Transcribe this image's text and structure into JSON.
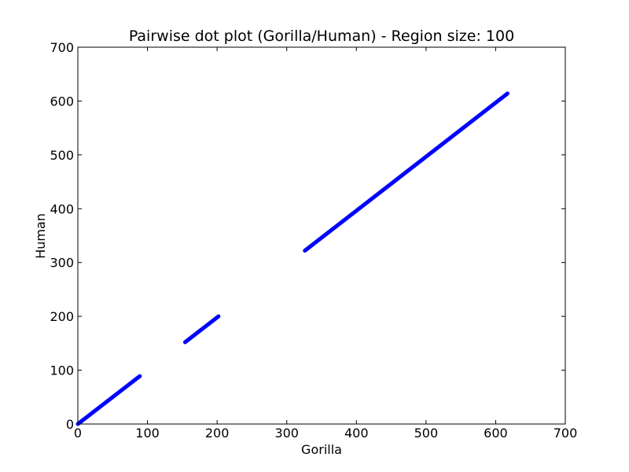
{
  "chart_data": {
    "type": "scatter",
    "title": "Pairwise dot plot (Gorilla/Human) - Region size: 100",
    "xlabel": "Gorilla",
    "ylabel": "Human",
    "xlim": [
      0,
      700
    ],
    "ylim": [
      0,
      700
    ],
    "xticks": [
      "0",
      "100",
      "200",
      "300",
      "400",
      "500",
      "600",
      "700"
    ],
    "yticks": [
      "0",
      "100",
      "200",
      "300",
      "400",
      "500",
      "600",
      "700"
    ],
    "grid": false,
    "color": "#0000ff",
    "segments": [
      {
        "start": [
          0,
          0
        ],
        "end": [
          89,
          89
        ]
      },
      {
        "start": [
          154,
          152
        ],
        "end": [
          202,
          200
        ]
      },
      {
        "start": [
          326,
          322
        ],
        "end": [
          617,
          614
        ]
      }
    ]
  }
}
